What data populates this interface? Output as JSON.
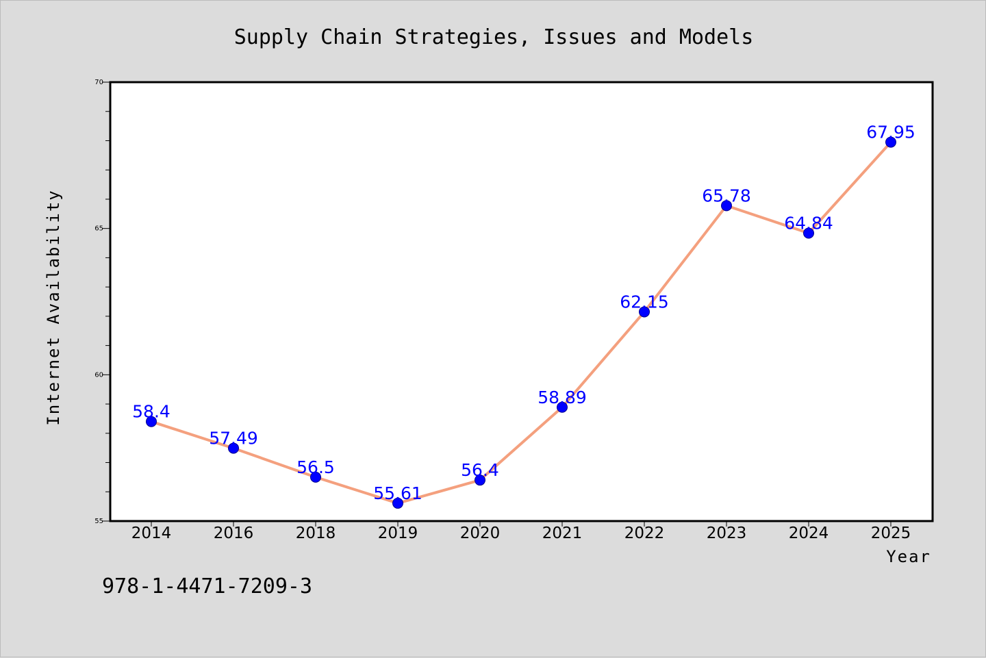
{
  "chart_data": {
    "type": "line",
    "title": "Supply Chain Strategies, Issues and Models",
    "xlabel": "Year",
    "ylabel": "Internet Availability",
    "categories": [
      "2014",
      "2016",
      "2018",
      "2019",
      "2020",
      "2021",
      "2022",
      "2023",
      "2024",
      "2025"
    ],
    "series": [
      {
        "values": [
          58.4,
          57.49,
          56.5,
          55.61,
          56.4,
          58.89,
          62.15,
          65.78,
          64.84,
          67.95
        ],
        "labels": [
          "58.4",
          "57.49",
          "56.5",
          "55.61",
          "56.4",
          "58.89",
          "62.15",
          "65.78",
          "64.84",
          "67.95"
        ]
      }
    ],
    "ylim": [
      55,
      70
    ],
    "yticks": [
      55,
      60,
      65,
      70
    ],
    "yticks_minor_step": 1,
    "grid": false,
    "line_color": "#f4a07e",
    "marker_color": "#0000ff",
    "label_color": "#0000ff",
    "background": "#dcdcdc",
    "plot_background": "#ffffff"
  },
  "footer": {
    "isbn": "978-1-4471-7209-3"
  }
}
